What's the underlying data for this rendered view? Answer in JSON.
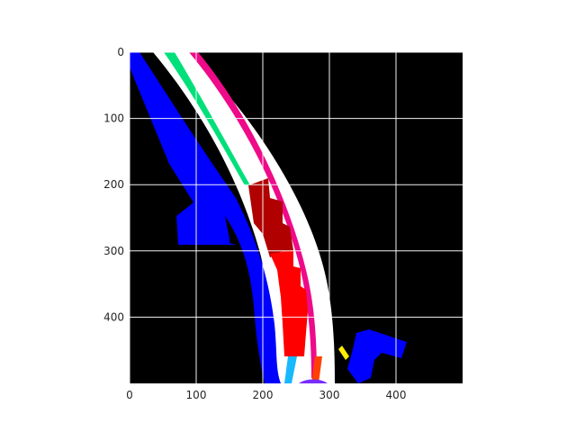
{
  "figure": {
    "background_color": "#000000",
    "grid": true
  },
  "axes": {
    "x_ticks": [
      "0",
      "100",
      "200",
      "300",
      "400"
    ],
    "y_ticks": [
      "0",
      "100",
      "200",
      "300",
      "400"
    ],
    "x_range": [
      0,
      500
    ],
    "y_range": [
      0,
      500
    ],
    "y_inverted": true
  },
  "regions": [
    {
      "name": "blue-lane-left",
      "color": "#0000ff"
    },
    {
      "name": "white-road",
      "color": "#ffffff"
    },
    {
      "name": "green-line",
      "color": "#00e07a"
    },
    {
      "name": "magenta-line",
      "color": "#ee0a88"
    },
    {
      "name": "dark-red-vehicle",
      "color": "#b00000"
    },
    {
      "name": "red-vehicle",
      "color": "#ff0000"
    },
    {
      "name": "cyan-marker",
      "color": "#18b8ff"
    },
    {
      "name": "orange-marker",
      "color": "#ff4000"
    },
    {
      "name": "purple-marker",
      "color": "#7a2cff"
    },
    {
      "name": "blue-blob-right",
      "color": "#0000ff"
    },
    {
      "name": "yellow-marker",
      "color": "#ffee00"
    }
  ]
}
